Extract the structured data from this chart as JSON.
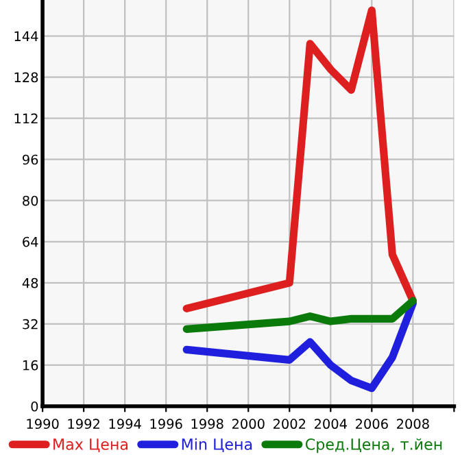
{
  "chart_data": {
    "type": "line",
    "x": [
      1997,
      2002,
      2003,
      2004,
      2005,
      2006,
      2007,
      2008
    ],
    "series": [
      {
        "name": "Max Цена",
        "color": "#dd1f1f",
        "values": [
          38,
          48,
          141,
          131,
          123,
          154,
          59,
          41
        ]
      },
      {
        "name": "Min Цена",
        "color": "#1f1fdd",
        "values": [
          22,
          18,
          25,
          16,
          10,
          7,
          19,
          40
        ]
      },
      {
        "name": "Сред.Цена, т.йен",
        "color": "#0a7a0a",
        "values": [
          30,
          33,
          35,
          33,
          34,
          34,
          34,
          41
        ]
      }
    ],
    "xlim": [
      1990,
      2010
    ],
    "xticks": [
      1990,
      1992,
      1994,
      1996,
      1998,
      2000,
      2002,
      2004,
      2006,
      2008,
      {
        "value": 2010,
        "label": null
      }
    ],
    "ylim": [
      0,
      158
    ],
    "yticks": [
      0,
      16,
      32,
      48,
      64,
      80,
      96,
      112,
      128,
      144
    ],
    "grid": true,
    "legend": "bottom",
    "marker": "none",
    "line_style": "solid"
  }
}
